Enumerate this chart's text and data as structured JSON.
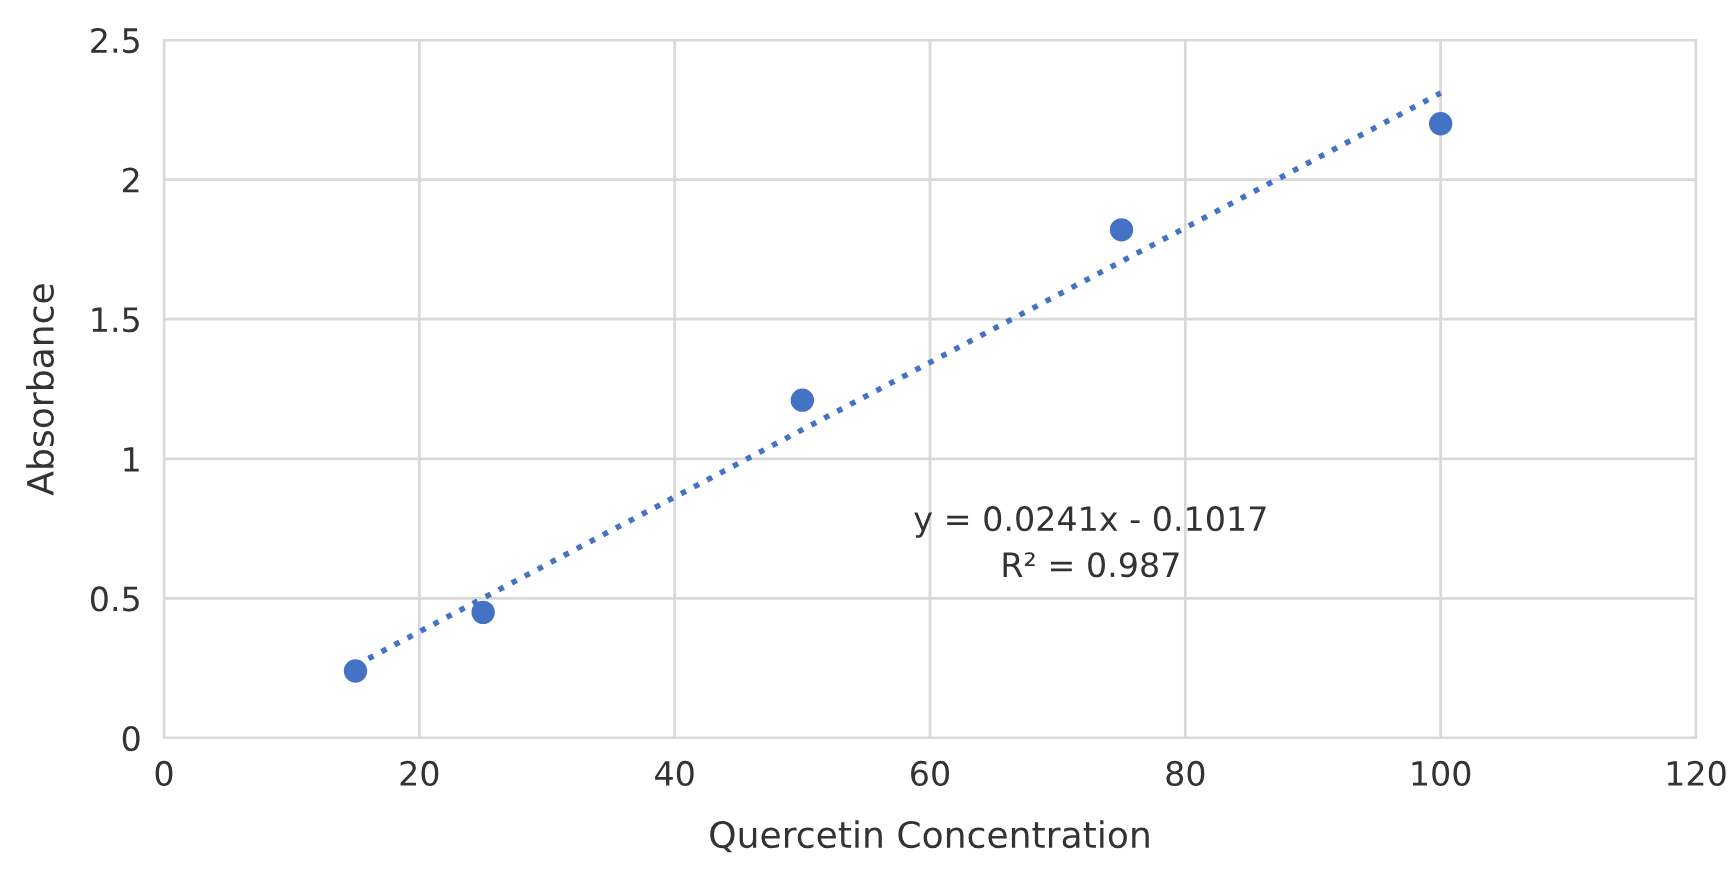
{
  "chart_data": {
    "type": "scatter",
    "xlabel": "Quercetin Concentration",
    "ylabel": "Absorbance",
    "series": [
      {
        "color": "#4472c4",
        "x": [
          15,
          25,
          50,
          75,
          100
        ],
        "values": [
          0.24,
          0.45,
          1.21,
          1.82,
          2.2
        ],
        "marker": "circle"
      },
      {
        "type": "line",
        "color": "#4472c4",
        "x": [
          15,
          100
        ],
        "values": [
          0.26,
          2.31
        ],
        "line_style": "dotted",
        "marker": "none"
      }
    ],
    "annotations": [
      "y = 0.0241x - 0.1017",
      "R² = 0.987"
    ],
    "xlim": [
      0,
      120
    ],
    "xticks": [
      0,
      20,
      40,
      60,
      80,
      100,
      120
    ],
    "ylim": [
      0,
      2.5
    ],
    "yticks": [
      0,
      0.5,
      1,
      1.5,
      2,
      2.5
    ],
    "grid": true,
    "legend": false
  }
}
